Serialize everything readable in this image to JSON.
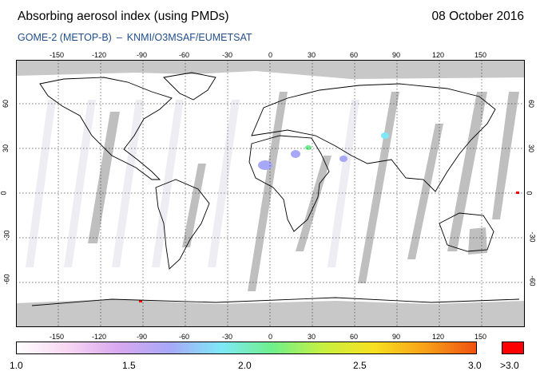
{
  "header": {
    "title": "Absorbing aerosol index (using PMDs)",
    "date": "08 October 2016",
    "subtitle_instrument": "GOME-2 (METOP-B)",
    "subtitle_separator": "–",
    "subtitle_source": "KNMI/O3MSAF/EUMETSAT"
  },
  "map": {
    "longitude_ticks": [
      "-150",
      "-120",
      "-90",
      "-60",
      "-30",
      "0",
      "30",
      "60",
      "90",
      "120",
      "150"
    ],
    "latitude_ticks": [
      "60",
      "30",
      "0",
      "-30",
      "-60"
    ],
    "colors": {
      "no_data": "#c8c8c8",
      "orbit_gap": "#b4b4b4",
      "coastline": "#000000",
      "grid": "#000000"
    }
  },
  "colorbar": {
    "labels": [
      "1.0",
      "1.5",
      "2.0",
      "2.5",
      "3.0"
    ],
    "overflow_label": ">3.0",
    "overflow_color": "#ff0000",
    "stops": [
      "#ffffff",
      "#f7d7f2",
      "#d8a8f0",
      "#a8a8f8",
      "#7ee8f8",
      "#6ef08c",
      "#c8f040",
      "#f8e020",
      "#f8a018",
      "#f05010"
    ]
  }
}
